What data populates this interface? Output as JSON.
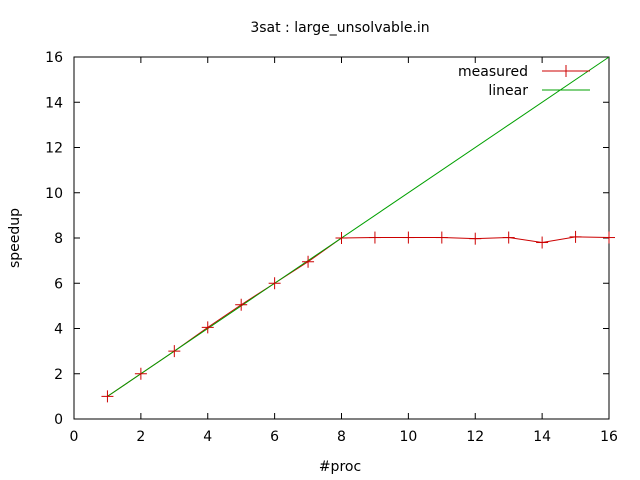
{
  "chart_data": {
    "type": "line",
    "title": "3sat : large_unsolvable.in",
    "xlabel": "#proc",
    "ylabel": "speedup",
    "xlim": [
      0,
      16
    ],
    "ylim": [
      0,
      16
    ],
    "xticks": [
      0,
      2,
      4,
      6,
      8,
      10,
      12,
      14,
      16
    ],
    "yticks": [
      0,
      2,
      4,
      6,
      8,
      10,
      12,
      14,
      16
    ],
    "grid": false,
    "legend_position": "top-right",
    "series": [
      {
        "name": "measured",
        "color": "#cc0000",
        "marker": "plus",
        "x": [
          1,
          2,
          3,
          4,
          5,
          6,
          7,
          8,
          9,
          10,
          11,
          12,
          13,
          14,
          15,
          16
        ],
        "y": [
          1.0,
          2.0,
          3.0,
          4.05,
          5.05,
          6.0,
          6.95,
          8.0,
          8.02,
          8.02,
          8.02,
          7.97,
          8.02,
          7.8,
          8.05,
          8.02
        ]
      },
      {
        "name": "linear",
        "color": "#00a000",
        "marker": "none",
        "x": [
          1,
          16
        ],
        "y": [
          1,
          16
        ]
      }
    ]
  }
}
